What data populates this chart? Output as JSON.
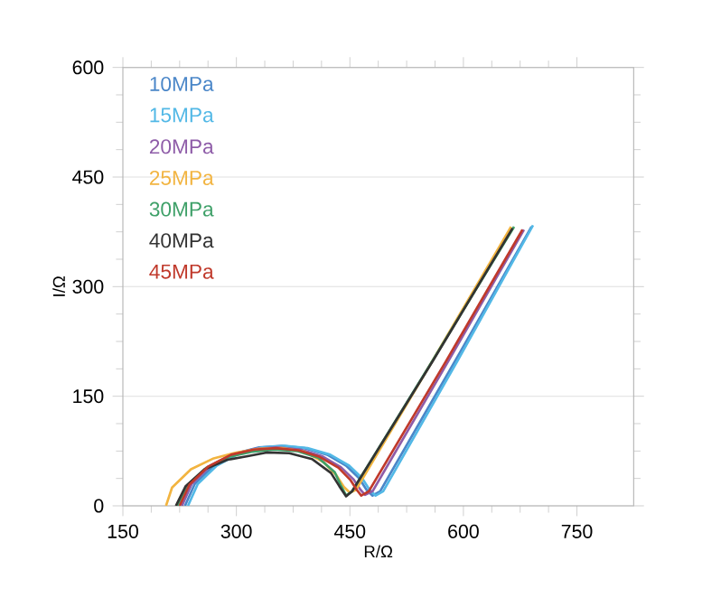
{
  "chart_data": {
    "type": "line",
    "xlabel": "R/Ω",
    "ylabel": "I/Ω",
    "xlim": [
      150,
      825
    ],
    "ylim": [
      0,
      600
    ],
    "xticks": [
      150,
      300,
      450,
      600,
      750
    ],
    "yticks": [
      0,
      150,
      300,
      450,
      600
    ],
    "grid": "y",
    "legend": "top left",
    "marker": "none",
    "line_style": "solid",
    "series": [
      {
        "name": "10MPa",
        "color": "#4a86c8",
        "x": [
          232,
          245,
          270,
          300,
          330,
          360,
          390,
          420,
          445,
          462,
          472,
          480,
          490,
          590,
          690
        ],
        "values": [
          0,
          30,
          55,
          72,
          80,
          82,
          79,
          70,
          55,
          38,
          22,
          14,
          20,
          200,
          382
        ]
      },
      {
        "name": "15MPa",
        "color": "#52b8e6",
        "x": [
          236,
          249,
          274,
          304,
          334,
          364,
          394,
          424,
          449,
          466,
          476,
          484,
          494,
          593,
          692
        ],
        "values": [
          0,
          30,
          55,
          72,
          80,
          82,
          79,
          70,
          55,
          38,
          22,
          14,
          20,
          200,
          384
        ]
      },
      {
        "name": "20MPa",
        "color": "#8e5ca8",
        "x": [
          228,
          241,
          266,
          296,
          326,
          355,
          385,
          413,
          438,
          455,
          464,
          470,
          480,
          580,
          680
        ],
        "values": [
          0,
          30,
          55,
          71,
          78,
          80,
          77,
          68,
          53,
          36,
          22,
          15,
          20,
          198,
          378
        ]
      },
      {
        "name": "25MPa",
        "color": "#f2b440",
        "x": [
          207,
          215,
          240,
          270,
          300,
          330,
          360,
          390,
          415,
          432,
          442,
          450,
          458,
          560,
          663
        ],
        "values": [
          0,
          25,
          50,
          65,
          73,
          78,
          79,
          74,
          60,
          42,
          26,
          18,
          22,
          200,
          382
        ]
      },
      {
        "name": "30MPa",
        "color": "#3ea068",
        "x": [
          222,
          235,
          260,
          290,
          320,
          350,
          380,
          408,
          430,
          438,
          445,
          453,
          560,
          667
        ],
        "values": [
          0,
          28,
          52,
          67,
          74,
          77,
          75,
          66,
          46,
          28,
          14,
          20,
          200,
          382
        ]
      },
      {
        "name": "40MPa",
        "color": "#333333",
        "x": [
          220,
          233,
          258,
          288,
          315,
          340,
          370,
          400,
          425,
          436,
          445,
          453,
          560,
          665
        ],
        "values": [
          0,
          27,
          50,
          63,
          68,
          73,
          72,
          64,
          45,
          27,
          13,
          20,
          199,
          380
        ]
      },
      {
        "name": "45MPa",
        "color": "#c0392b",
        "x": [
          225,
          238,
          263,
          293,
          323,
          352,
          382,
          410,
          435,
          451,
          459,
          465,
          475,
          577,
          678
        ],
        "values": [
          0,
          29,
          54,
          70,
          77,
          79,
          76,
          67,
          52,
          35,
          22,
          14,
          20,
          198,
          378
        ]
      }
    ]
  }
}
